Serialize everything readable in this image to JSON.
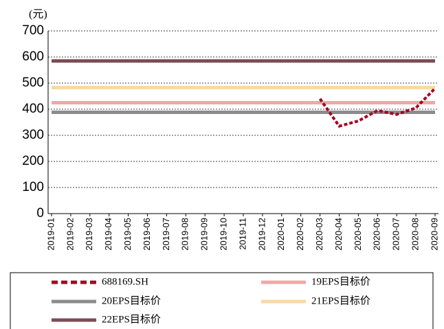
{
  "chart_data": {
    "type": "line",
    "y_unit_label": "(元)",
    "categories": [
      "2019-01",
      "2019-02",
      "2019-03",
      "2019-04",
      "2019-05",
      "2019-06",
      "2019-07",
      "2019-08",
      "2019-09",
      "2019-10",
      "2019-11",
      "2019-12",
      "2020-01",
      "2020-02",
      "2020-03",
      "2020-04",
      "2020-05",
      "2020-06",
      "2020-07",
      "2020-08",
      "2020-09"
    ],
    "series": [
      {
        "name": "688169.SH",
        "color": "#a50021",
        "dashed": true,
        "values": [
          null,
          null,
          null,
          null,
          null,
          null,
          null,
          null,
          null,
          null,
          null,
          null,
          null,
          null,
          440,
          335,
          355,
          395,
          380,
          405,
          480
        ]
      },
      {
        "name": "19EPS目标价",
        "color": "#f2a7a7",
        "dashed": false,
        "values": [
          425,
          425,
          425,
          425,
          425,
          425,
          425,
          425,
          425,
          425,
          425,
          425,
          425,
          425,
          425,
          425,
          425,
          425,
          425,
          425,
          425
        ]
      },
      {
        "name": "20EPS目标价",
        "color": "#8c8c8c",
        "dashed": false,
        "values": [
          388,
          388,
          388,
          388,
          388,
          388,
          388,
          388,
          388,
          388,
          388,
          388,
          388,
          388,
          388,
          388,
          388,
          388,
          388,
          388,
          388
        ]
      },
      {
        "name": "21EPS目标价",
        "color": "#f9d9a3",
        "dashed": false,
        "values": [
          483,
          483,
          483,
          483,
          483,
          483,
          483,
          483,
          483,
          483,
          483,
          483,
          483,
          483,
          483,
          483,
          483,
          483,
          483,
          483,
          483
        ]
      },
      {
        "name": "22EPS目标价",
        "color": "#7b4d55",
        "dashed": false,
        "values": [
          585,
          585,
          585,
          585,
          585,
          585,
          585,
          585,
          585,
          585,
          585,
          585,
          585,
          585,
          585,
          585,
          585,
          585,
          585,
          585,
          585
        ]
      }
    ],
    "ylim": [
      0,
      700
    ],
    "yticks": [
      0,
      100,
      200,
      300,
      400,
      500,
      600,
      700
    ],
    "grid": true
  }
}
